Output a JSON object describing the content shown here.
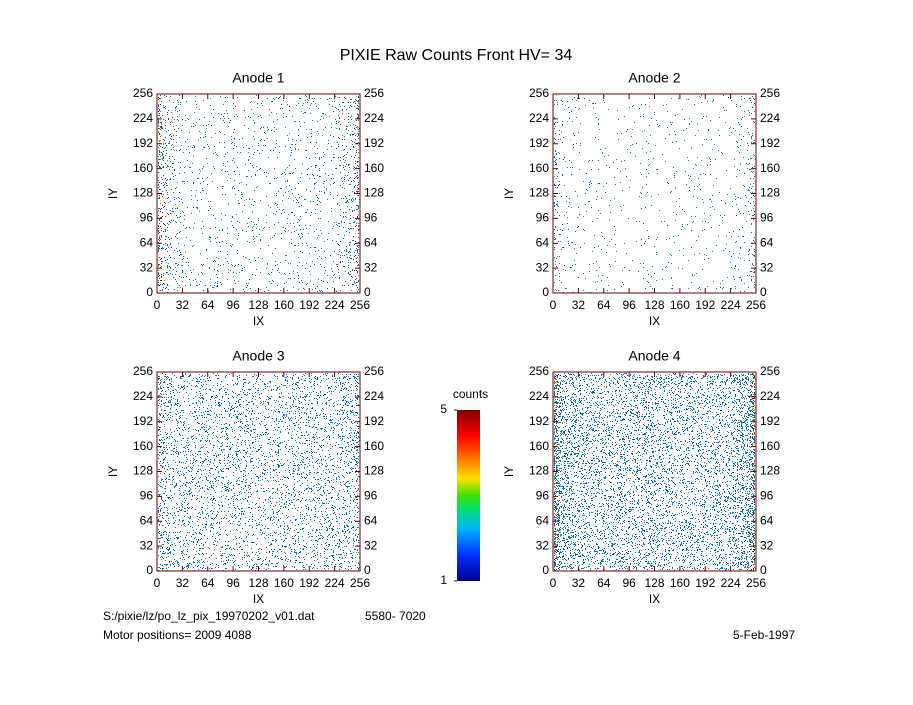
{
  "title": "PIXIE Raw Counts Front HV= 34",
  "chart_data": [
    {
      "type": "scatter",
      "title": "Anode 1",
      "x_label": "IX",
      "y_label": "IY",
      "xlim": [
        0,
        256
      ],
      "ylim": [
        0,
        256
      ],
      "xticks": [
        0,
        32,
        64,
        96,
        128,
        160,
        192,
        224,
        256
      ],
      "yticks": [
        0,
        32,
        64,
        96,
        128,
        160,
        192,
        224,
        256
      ]
    },
    {
      "type": "scatter",
      "title": "Anode 2",
      "x_label": "IX",
      "y_label": "IY",
      "xlim": [
        0,
        256
      ],
      "ylim": [
        0,
        256
      ],
      "xticks": [
        0,
        32,
        64,
        96,
        128,
        160,
        192,
        224,
        256
      ],
      "yticks": [
        0,
        32,
        64,
        96,
        128,
        160,
        192,
        224,
        256
      ]
    },
    {
      "type": "scatter",
      "title": "Anode 3",
      "x_label": "IX",
      "y_label": "IY",
      "xlim": [
        0,
        256
      ],
      "ylim": [
        0,
        256
      ],
      "xticks": [
        0,
        32,
        64,
        96,
        128,
        160,
        192,
        224,
        256
      ],
      "yticks": [
        0,
        32,
        64,
        96,
        128,
        160,
        192,
        224,
        256
      ]
    },
    {
      "type": "scatter",
      "title": "Anode 4",
      "x_label": "IX",
      "y_label": "IY",
      "xlim": [
        0,
        256
      ],
      "ylim": [
        0,
        256
      ],
      "xticks": [
        0,
        32,
        64,
        96,
        128,
        160,
        192,
        224,
        256
      ],
      "yticks": [
        0,
        32,
        64,
        96,
        128,
        160,
        192,
        224,
        256
      ]
    }
  ],
  "colorbar": {
    "label": "counts",
    "lim": [
      1,
      5
    ],
    "ticks": [
      1,
      5
    ]
  },
  "footer": {
    "file": "S:/pixie/lz/po_lz_pix_19970202_v01.dat",
    "range": "5580- 7020",
    "motor": "Motor positions= 2009 4088",
    "date": "5-Feb-1997"
  }
}
